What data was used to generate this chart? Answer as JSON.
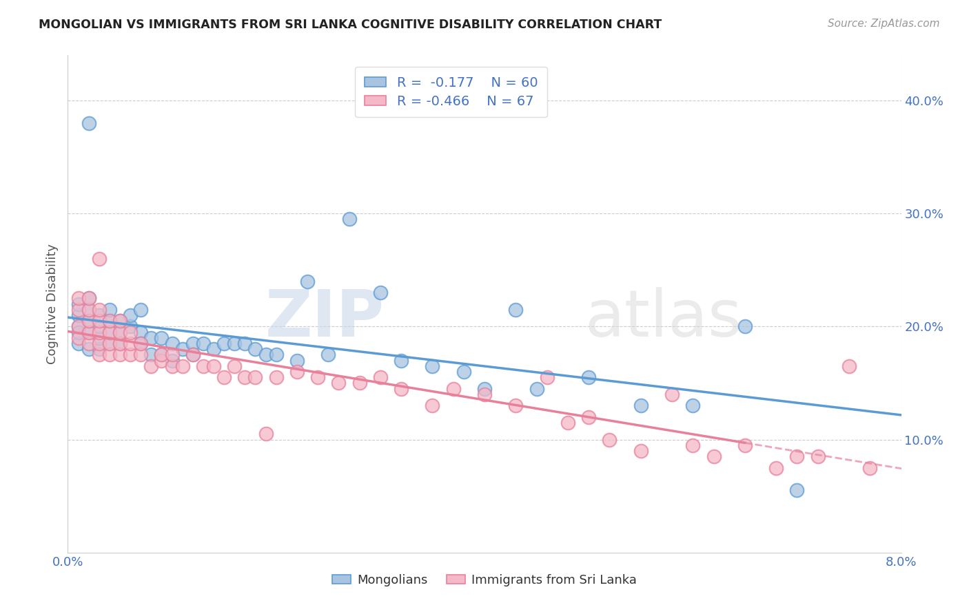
{
  "title": "MONGOLIAN VS IMMIGRANTS FROM SRI LANKA COGNITIVE DISABILITY CORRELATION CHART",
  "source": "Source: ZipAtlas.com",
  "ylabel": "Cognitive Disability",
  "watermark_zip": "ZIP",
  "watermark_atlas": "atlas",
  "xlim": [
    0.0,
    0.08
  ],
  "ylim": [
    0.0,
    0.44
  ],
  "x_tick_vals": [
    0.0,
    0.08
  ],
  "x_tick_labels": [
    "0.0%",
    "8.0%"
  ],
  "y_tick_vals": [
    0.1,
    0.2,
    0.3,
    0.4
  ],
  "y_tick_labels": [
    "10.0%",
    "20.0%",
    "30.0%",
    "40.0%"
  ],
  "mongolian_color": "#a8c4e0",
  "sri_lanka_color": "#f4b8c8",
  "mongolian_edge": "#5b9bd5",
  "sri_lanka_edge": "#e8809a",
  "trend_mongolian_color": "#5b9bd5",
  "trend_sri_lanka_color": "#e8809a",
  "R_mongolian": -0.177,
  "N_mongolian": 60,
  "R_sri_lanka": -0.466,
  "N_sri_lanka": 67,
  "legend_mongolian": "Mongolians",
  "legend_sri_lanka": "Immigrants from Sri Lanka",
  "background_color": "#ffffff",
  "grid_color": "#cccccc",
  "label_color": "#4472c4",
  "mongolian_x": [
    0.001,
    0.001,
    0.001,
    0.001,
    0.001,
    0.002,
    0.002,
    0.002,
    0.002,
    0.002,
    0.002,
    0.003,
    0.003,
    0.003,
    0.003,
    0.004,
    0.004,
    0.004,
    0.004,
    0.005,
    0.005,
    0.005,
    0.006,
    0.006,
    0.007,
    0.007,
    0.007,
    0.008,
    0.008,
    0.009,
    0.009,
    0.01,
    0.01,
    0.011,
    0.012,
    0.012,
    0.013,
    0.014,
    0.015,
    0.016,
    0.017,
    0.018,
    0.019,
    0.02,
    0.022,
    0.023,
    0.025,
    0.027,
    0.03,
    0.032,
    0.035,
    0.038,
    0.04,
    0.043,
    0.045,
    0.05,
    0.055,
    0.06,
    0.065,
    0.07
  ],
  "mongolian_y": [
    0.2,
    0.21,
    0.22,
    0.185,
    0.195,
    0.18,
    0.195,
    0.205,
    0.215,
    0.225,
    0.38,
    0.18,
    0.19,
    0.2,
    0.21,
    0.185,
    0.195,
    0.205,
    0.215,
    0.185,
    0.195,
    0.205,
    0.2,
    0.21,
    0.195,
    0.185,
    0.215,
    0.175,
    0.19,
    0.175,
    0.19,
    0.17,
    0.185,
    0.18,
    0.185,
    0.175,
    0.185,
    0.18,
    0.185,
    0.185,
    0.185,
    0.18,
    0.175,
    0.175,
    0.17,
    0.24,
    0.175,
    0.295,
    0.23,
    0.17,
    0.165,
    0.16,
    0.145,
    0.215,
    0.145,
    0.155,
    0.13,
    0.13,
    0.2,
    0.055
  ],
  "sri_lanka_x": [
    0.001,
    0.001,
    0.001,
    0.001,
    0.002,
    0.002,
    0.002,
    0.002,
    0.002,
    0.003,
    0.003,
    0.003,
    0.003,
    0.003,
    0.003,
    0.004,
    0.004,
    0.004,
    0.004,
    0.005,
    0.005,
    0.005,
    0.005,
    0.006,
    0.006,
    0.006,
    0.007,
    0.007,
    0.008,
    0.009,
    0.009,
    0.01,
    0.01,
    0.011,
    0.012,
    0.013,
    0.014,
    0.015,
    0.016,
    0.017,
    0.018,
    0.019,
    0.02,
    0.022,
    0.024,
    0.026,
    0.028,
    0.03,
    0.032,
    0.035,
    0.037,
    0.04,
    0.043,
    0.046,
    0.048,
    0.05,
    0.052,
    0.055,
    0.058,
    0.06,
    0.062,
    0.065,
    0.068,
    0.07,
    0.072,
    0.075,
    0.077
  ],
  "sri_lanka_y": [
    0.19,
    0.2,
    0.215,
    0.225,
    0.185,
    0.195,
    0.205,
    0.215,
    0.225,
    0.175,
    0.185,
    0.195,
    0.205,
    0.215,
    0.26,
    0.175,
    0.185,
    0.195,
    0.205,
    0.175,
    0.185,
    0.195,
    0.205,
    0.175,
    0.185,
    0.195,
    0.175,
    0.185,
    0.165,
    0.17,
    0.175,
    0.165,
    0.175,
    0.165,
    0.175,
    0.165,
    0.165,
    0.155,
    0.165,
    0.155,
    0.155,
    0.105,
    0.155,
    0.16,
    0.155,
    0.15,
    0.15,
    0.155,
    0.145,
    0.13,
    0.145,
    0.14,
    0.13,
    0.155,
    0.115,
    0.12,
    0.1,
    0.09,
    0.14,
    0.095,
    0.085,
    0.095,
    0.075,
    0.085,
    0.085,
    0.165,
    0.075
  ]
}
